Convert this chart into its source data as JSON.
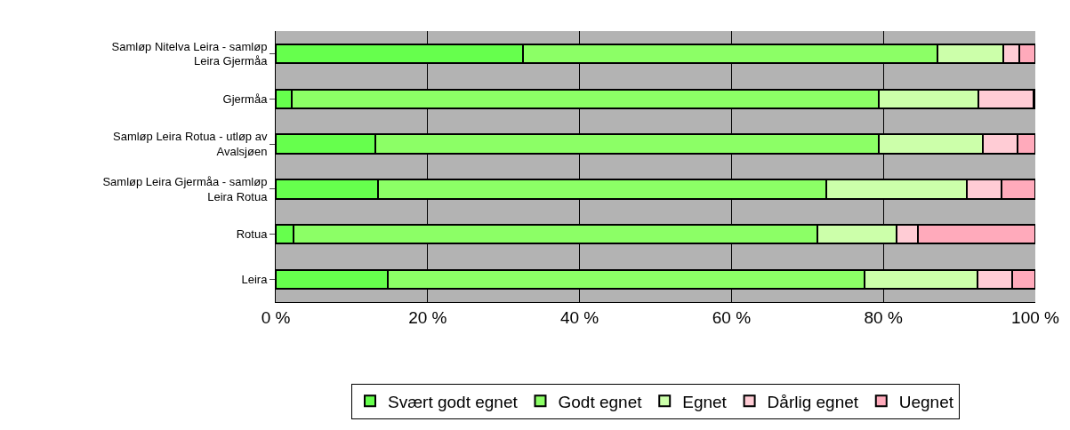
{
  "chart_data": {
    "type": "bar",
    "orientation": "horizontal",
    "stacked": true,
    "categories": [
      "Samløp Nitelva Leira - samløp Leira Gjermåa",
      "Gjermåa",
      "Samløp Leira Rotua - utløp av Avalsjøen",
      "Samløp Leira Gjermåa - samløp Leira Rotua",
      "Rotua",
      "Leira"
    ],
    "series": [
      {
        "name": "Svært godt egnet",
        "color": "#66ff4d",
        "values": [
          32.6,
          2.1,
          13.1,
          13.5,
          2.3,
          14.8
        ]
      },
      {
        "name": "Godt egnet",
        "color": "#8cff66",
        "values": [
          54.5,
          77.3,
          66.3,
          59.0,
          69.0,
          62.7
        ]
      },
      {
        "name": "Egnet",
        "color": "#ccffaa",
        "values": [
          8.7,
          13.1,
          13.7,
          18.5,
          10.4,
          14.9
        ]
      },
      {
        "name": "Dårlig egnet",
        "color": "#ffccd5",
        "values": [
          2.1,
          7.3,
          4.6,
          4.6,
          2.8,
          4.5
        ]
      },
      {
        "name": "Uegnet",
        "color": "#ffaabb",
        "values": [
          2.1,
          0.2,
          2.3,
          4.4,
          15.5,
          3.1
        ]
      }
    ],
    "xlim": [
      0,
      100
    ],
    "xticks": [
      {
        "value": 0,
        "label": "0 %"
      },
      {
        "value": 20,
        "label": "20 %"
      },
      {
        "value": 40,
        "label": "40 %"
      },
      {
        "value": 60,
        "label": "60 %"
      },
      {
        "value": 80,
        "label": "80 %"
      },
      {
        "value": 100,
        "label": "100 %"
      }
    ],
    "grid": "x",
    "legend": "bottom"
  }
}
